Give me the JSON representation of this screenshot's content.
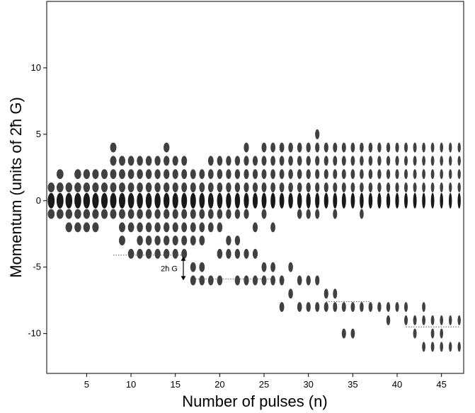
{
  "chart_data": {
    "type": "scatter",
    "title": "",
    "xlabel": "Number of pulses (n)",
    "ylabel": "Momentum (units of 2ħ G)",
    "xlim": [
      0.5,
      47.5
    ],
    "ylim": [
      -13,
      15
    ],
    "x_ticks": [
      5,
      10,
      15,
      20,
      25,
      30,
      35,
      40,
      45
    ],
    "y_ticks": [
      -10,
      -5,
      0,
      5,
      10
    ],
    "grid": false,
    "legend": "none",
    "annotations": [
      {
        "text": "2ħ G",
        "x": 15.9,
        "y_from": -4.1,
        "y_to": -6.1
      }
    ],
    "guide_lines": [
      {
        "x": [
          8,
          16
        ],
        "y": -4.1
      },
      {
        "x": [
          17,
          26
        ],
        "y": -5.9
      },
      {
        "x": [
          32,
          37
        ],
        "y": -7.6
      },
      {
        "x": [
          41,
          47
        ],
        "y": -9.5
      }
    ],
    "columns": [
      {
        "n": 1,
        "momenta": [
          -1,
          0,
          1
        ]
      },
      {
        "n": 2,
        "momenta": [
          -1,
          0,
          1,
          2
        ]
      },
      {
        "n": 3,
        "momenta": [
          -2,
          -1,
          0,
          1
        ]
      },
      {
        "n": 4,
        "momenta": [
          -2,
          -1,
          0,
          1,
          2
        ]
      },
      {
        "n": 5,
        "momenta": [
          -2,
          -1,
          0,
          1,
          2
        ]
      },
      {
        "n": 6,
        "momenta": [
          -2,
          -1,
          0,
          1,
          2
        ]
      },
      {
        "n": 7,
        "momenta": [
          -1,
          0,
          1,
          2
        ]
      },
      {
        "n": 8,
        "momenta": [
          -1,
          0,
          1,
          2,
          3,
          4
        ]
      },
      {
        "n": 9,
        "momenta": [
          -3,
          -2,
          -1,
          0,
          1,
          2,
          3
        ]
      },
      {
        "n": 10,
        "momenta": [
          -4,
          -2,
          -1,
          0,
          1,
          2,
          3
        ]
      },
      {
        "n": 11,
        "momenta": [
          -4,
          -3,
          -2,
          -1,
          0,
          1,
          2,
          3
        ]
      },
      {
        "n": 12,
        "momenta": [
          -4,
          -3,
          -2,
          -1,
          0,
          1,
          2,
          3
        ]
      },
      {
        "n": 13,
        "momenta": [
          -4,
          -3,
          -2,
          -1,
          0,
          1,
          2,
          3
        ]
      },
      {
        "n": 14,
        "momenta": [
          -4,
          -3,
          -2,
          -1,
          0,
          1,
          2,
          3,
          4
        ]
      },
      {
        "n": 15,
        "momenta": [
          -4,
          -3,
          -2,
          -1,
          0,
          1,
          2,
          3
        ]
      },
      {
        "n": 16,
        "momenta": [
          -4,
          -3,
          -2,
          -1,
          0,
          1,
          2,
          3
        ]
      },
      {
        "n": 17,
        "momenta": [
          -6,
          -5,
          -3,
          -2,
          -1,
          0,
          1,
          2
        ]
      },
      {
        "n": 18,
        "momenta": [
          -6,
          -5,
          -3,
          -2,
          -1,
          0,
          1,
          2
        ]
      },
      {
        "n": 19,
        "momenta": [
          -6,
          -2,
          -1,
          0,
          1,
          2,
          3
        ]
      },
      {
        "n": 20,
        "momenta": [
          -6,
          -4,
          -2,
          -1,
          0,
          1,
          2,
          3
        ]
      },
      {
        "n": 21,
        "momenta": [
          -4,
          -3,
          -1,
          0,
          1,
          2,
          3
        ]
      },
      {
        "n": 22,
        "momenta": [
          -6,
          -4,
          -3,
          -1,
          0,
          1,
          2,
          3
        ]
      },
      {
        "n": 23,
        "momenta": [
          -6,
          -4,
          -1,
          0,
          1,
          2,
          3,
          4
        ]
      },
      {
        "n": 24,
        "momenta": [
          -6,
          -4,
          -2,
          0,
          1,
          2,
          3
        ]
      },
      {
        "n": 25,
        "momenta": [
          -6,
          -5,
          -1,
          0,
          1,
          2,
          3,
          4
        ]
      },
      {
        "n": 26,
        "momenta": [
          -6,
          -5,
          -2,
          0,
          1,
          2,
          3,
          4
        ]
      },
      {
        "n": 27,
        "momenta": [
          -6,
          -8,
          0,
          1,
          2,
          3,
          4
        ]
      },
      {
        "n": 28,
        "momenta": [
          -7,
          -5,
          0,
          1,
          2,
          3,
          4
        ]
      },
      {
        "n": 29,
        "momenta": [
          -8,
          -6,
          -1,
          0,
          1,
          2,
          3,
          4
        ]
      },
      {
        "n": 30,
        "momenta": [
          -8,
          -6,
          -1,
          0,
          1,
          2,
          3,
          4
        ]
      },
      {
        "n": 31,
        "momenta": [
          -8,
          -6,
          -1,
          0,
          1,
          2,
          3,
          4,
          5
        ]
      },
      {
        "n": 32,
        "momenta": [
          -8,
          -7,
          0,
          1,
          2,
          3,
          4
        ]
      },
      {
        "n": 33,
        "momenta": [
          -8,
          -7,
          -1,
          0,
          1,
          2,
          3,
          4
        ]
      },
      {
        "n": 34,
        "momenta": [
          -8,
          -10,
          0,
          1,
          2,
          3,
          4
        ]
      },
      {
        "n": 35,
        "momenta": [
          -8,
          -10,
          0,
          1,
          2,
          3,
          4
        ]
      },
      {
        "n": 36,
        "momenta": [
          -8,
          -1,
          0,
          1,
          2,
          3,
          4
        ]
      },
      {
        "n": 37,
        "momenta": [
          -8,
          0,
          1,
          2,
          3,
          4
        ]
      },
      {
        "n": 38,
        "momenta": [
          -8,
          0,
          1,
          2,
          3,
          4
        ]
      },
      {
        "n": 39,
        "momenta": [
          -8,
          -9,
          0,
          1,
          2,
          3,
          4
        ]
      },
      {
        "n": 40,
        "momenta": [
          -8,
          0,
          1,
          2,
          3,
          4
        ]
      },
      {
        "n": 41,
        "momenta": [
          -8,
          -9,
          0,
          1,
          2,
          3,
          4
        ]
      },
      {
        "n": 42,
        "momenta": [
          -9,
          -10,
          0,
          1,
          2,
          3,
          4
        ]
      },
      {
        "n": 43,
        "momenta": [
          -8,
          -9,
          -11,
          0,
          1,
          2,
          3,
          4
        ]
      },
      {
        "n": 44,
        "momenta": [
          -9,
          -10,
          -11,
          0,
          1,
          2,
          3,
          4
        ]
      },
      {
        "n": 45,
        "momenta": [
          -9,
          -10,
          -11,
          0,
          1,
          2,
          3,
          4
        ]
      },
      {
        "n": 46,
        "momenta": [
          -9,
          -11,
          0,
          1,
          2,
          3,
          4
        ]
      },
      {
        "n": 47,
        "momenta": [
          -9,
          -11,
          0,
          1,
          2,
          3,
          4
        ]
      }
    ],
    "colors": {
      "dots": "#000000",
      "axis": "#000000",
      "guide": "#555555"
    }
  }
}
